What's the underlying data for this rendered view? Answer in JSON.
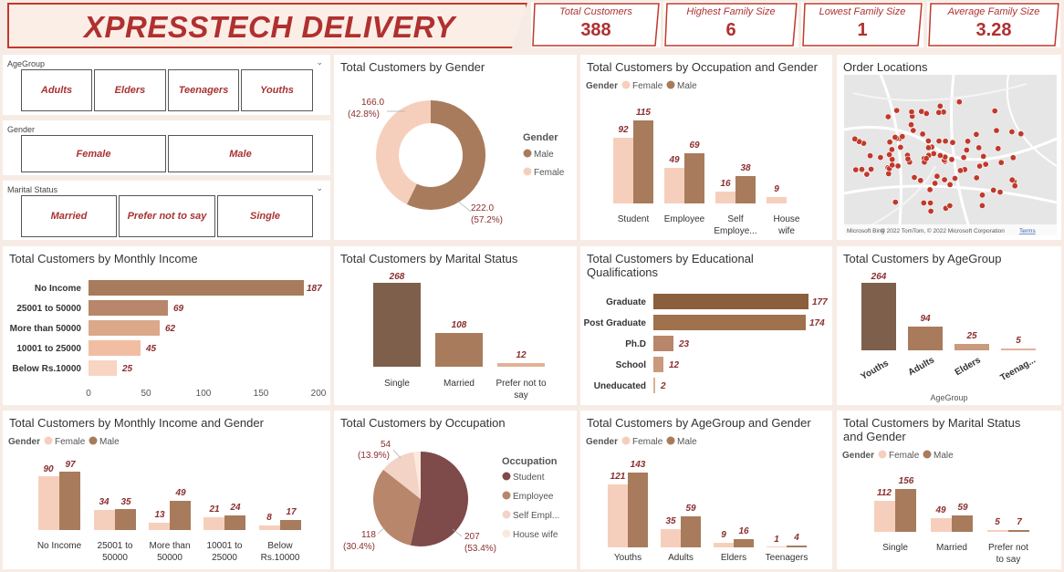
{
  "header": {
    "title": "XPRESSTECH DELIVERY"
  },
  "kpis": [
    {
      "label": "Total Customers",
      "value": "388"
    },
    {
      "label": "Highest Family Size",
      "value": "6"
    },
    {
      "label": "Lowest Family Size",
      "value": "1"
    },
    {
      "label": "Average Family Size",
      "value": "3.28"
    }
  ],
  "slicers": {
    "agegroup": {
      "label": "AgeGroup",
      "options": [
        "Adults",
        "Elders",
        "Teenagers",
        "Youths"
      ]
    },
    "gender": {
      "label": "Gender",
      "options": [
        "Female",
        "Male"
      ]
    },
    "marital": {
      "label": "Marital Status",
      "options": [
        "Married",
        "Prefer not to say",
        "Single"
      ]
    }
  },
  "colors": {
    "male": "#a87b5c",
    "female": "#f6cfbc",
    "accent": "#b03030"
  },
  "gender_donut": {
    "title": "Total Customers by Gender",
    "legend_title": "Gender",
    "legend": [
      "Male",
      "Female"
    ],
    "female_label": "166.0",
    "female_pct": "(42.8%)",
    "male_label": "222.0",
    "male_pct": "(57.2%)"
  },
  "occupation_gender": {
    "title": "Total Customers by Occupation and Gender",
    "legend_title": "Gender",
    "legend": [
      "Female",
      "Male"
    ],
    "cat1": "Student",
    "cat2": "Employee",
    "cat3a": "Self",
    "cat3b": "Employe...",
    "cat4a": "House",
    "cat4b": "wife",
    "v": [
      "92",
      "115",
      "49",
      "69",
      "16",
      "38",
      "9"
    ]
  },
  "order_locations": {
    "title": "Order Locations",
    "copyright": "© 2022 TomTom, © 2022 Microsoft Corporation",
    "terms": "Terms",
    "brand": "Microsoft Bing"
  },
  "monthly_income": {
    "title": "Total Customers by Monthly Income",
    "cats": [
      "No Income",
      "25001 to 50000",
      "More than 50000",
      "10001 to 25000",
      "Below Rs.10000"
    ],
    "vals": [
      "187",
      "69",
      "62",
      "45",
      "25"
    ],
    "ticks": [
      "0",
      "50",
      "100",
      "150",
      "200"
    ]
  },
  "marital_status": {
    "title": "Total Customers by Marital Status",
    "v": [
      "268",
      "108",
      "12"
    ],
    "c1": "Single",
    "c2": "Married",
    "c3a": "Prefer not to",
    "c3b": "say"
  },
  "education": {
    "title1": "Total Customers by Educational",
    "title2": "Qualifications",
    "cats": [
      "Graduate",
      "Post Graduate",
      "Ph.D",
      "School",
      "Uneducated"
    ],
    "vals": [
      "177",
      "174",
      "23",
      "12",
      "2"
    ]
  },
  "agegroup_chart": {
    "title": "Total Customers by AgeGroup",
    "v": [
      "264",
      "94",
      "25",
      "5"
    ],
    "cats": [
      "Youths",
      "Adults",
      "Elders",
      "Teenag..."
    ],
    "xlabel": "AgeGroup"
  },
  "income_gender": {
    "title": "Total Customers by Monthly Income and Gender",
    "legend_title": "Gender",
    "legend": [
      "Female",
      "Male"
    ],
    "v": [
      "90",
      "97",
      "34",
      "35",
      "13",
      "49",
      "21",
      "24",
      "8",
      "17"
    ],
    "c1": "No Income",
    "c2a": "25001 to",
    "c2b": "50000",
    "c3a": "More than",
    "c3b": "50000",
    "c4a": "10001 to",
    "c4b": "25000",
    "c5a": "Below",
    "c5b": "Rs.10000"
  },
  "occupation_pie": {
    "title": "Total Customers by Occupation",
    "legend_title": "Occupation",
    "legend": [
      "Student",
      "Employee",
      "Self Empl...",
      "House wife"
    ],
    "l1": "54",
    "l1p": "(13.9%)",
    "l2": "118",
    "l2p": "(30.4%)",
    "l3": "207",
    "l3p": "(53.4%)"
  },
  "agegroup_gender": {
    "title": "Total Customers by AgeGroup and Gender",
    "legend_title": "Gender",
    "legend": [
      "Female",
      "Male"
    ],
    "v": [
      "121",
      "143",
      "35",
      "59",
      "9",
      "16",
      "1",
      "4"
    ],
    "cats": [
      "Youths",
      "Adults",
      "Elders",
      "Teenagers"
    ]
  },
  "marital_gender": {
    "title1": "Total Customers by Marital Status",
    "title2": "and Gender",
    "legend_title": "Gender",
    "legend": [
      "Female",
      "Male"
    ],
    "v": [
      "112",
      "156",
      "49",
      "59",
      "5",
      "7"
    ],
    "c1": "Single",
    "c2": "Married",
    "c3a": "Prefer not",
    "c3b": "to say"
  }
}
